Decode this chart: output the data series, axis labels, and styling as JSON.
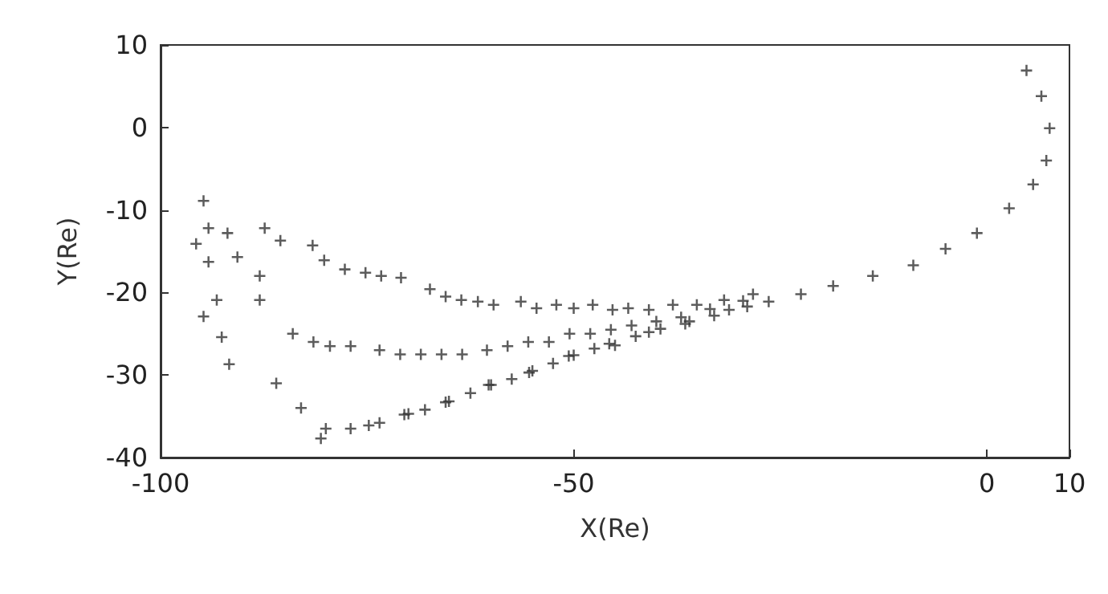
{
  "chart_data": {
    "type": "scatter",
    "xlabel": "X(Re)",
    "ylabel": "Y(Re)",
    "xlim": [
      -100,
      10
    ],
    "ylim": [
      -40,
      10
    ],
    "xticks": [
      -100,
      -50,
      0,
      10
    ],
    "yticks": [
      -40,
      -30,
      -20,
      -10,
      0,
      10
    ],
    "marker": "cross",
    "grid": false,
    "x": [
      4.8,
      6.6,
      7.6,
      7.2,
      5.6,
      2.7,
      -1.2,
      -5.0,
      -8.9,
      -13.8,
      -18.6,
      -22.5,
      -26.4,
      -31.2,
      -36.0,
      -40.9,
      -45.7,
      -50.6,
      -55.4,
      -60.3,
      -65.1,
      -70.0,
      -74.8,
      -80.6,
      -94.8,
      -94.2,
      -91.9,
      -87.4,
      -95.7,
      -94.2,
      -90.7,
      -85.5,
      -81.6,
      -88,
      -93.2,
      -94.8,
      -80.2,
      -88,
      -92.6,
      -91.7,
      -77.7,
      -84,
      -86,
      -75.2,
      -81.5,
      -83,
      -73.3,
      -79.5,
      -80,
      -70.9,
      -77,
      -77,
      -67.4,
      -73.5,
      -73.5,
      -65.5,
      -71,
      -70.5,
      -63.6,
      -68.5,
      -68,
      -61.6,
      -66,
      -65.5,
      -59.7,
      -63.5,
      -62.5,
      -56.4,
      -60.5,
      -60,
      -54.5,
      -58,
      -57.5,
      -52.1,
      -55.5,
      -55,
      -50,
      -53,
      -52.5,
      -47.7,
      -50.5,
      -50,
      -45.3,
      -48,
      -47.5,
      -43.4,
      -45.5,
      -45,
      -40.9,
      -43,
      -42.5,
      -38,
      -40,
      -39.5,
      -35.1,
      -37,
      -36.5,
      -31.8,
      -33.5,
      -33,
      -28.3,
      -29.5,
      -29
    ],
    "values": [
      6.9,
      3.8,
      -0.1,
      -4.0,
      -6.9,
      -9.8,
      -12.8,
      -14.7,
      -16.7,
      -18.0,
      -19.2,
      -20.2,
      -21.1,
      -22.1,
      -23.5,
      -24.8,
      -26.2,
      -27.7,
      -29.7,
      -31.2,
      -33.2,
      -34.7,
      -36.1,
      -37.7,
      -8.9,
      -12.2,
      -12.8,
      -12.2,
      -14.1,
      -16.3,
      -15.7,
      -13.7,
      -14.3,
      -18,
      -20.9,
      -22.9,
      -16.1,
      -20.9,
      -25.4,
      -28.7,
      -17.2,
      -25,
      -31,
      -17.6,
      -26,
      -34,
      -18.0,
      -26.5,
      -36.5,
      -18.2,
      -26.5,
      -36.5,
      -19.6,
      -27,
      -35.8,
      -20.5,
      -27.5,
      -34.8,
      -20.9,
      -27.5,
      -34.2,
      -21.1,
      -27.5,
      -33.3,
      -21.5,
      -27.5,
      -32.2,
      -21.1,
      -27,
      -31.2,
      -21.9,
      -26.5,
      -30.5,
      -21.5,
      -26,
      -29.5,
      -21.9,
      -26,
      -28.6,
      -21.5,
      -25,
      -27.6,
      -22.1,
      -25,
      -26.8,
      -21.9,
      -24.5,
      -26.4,
      -22.1,
      -24,
      -25.3,
      -21.5,
      -23.5,
      -24.4,
      -21.5,
      -23,
      -23.8,
      -20.9,
      -22,
      -22.8,
      -20.2,
      -21,
      -21.7
    ],
    "color": "#333333"
  }
}
